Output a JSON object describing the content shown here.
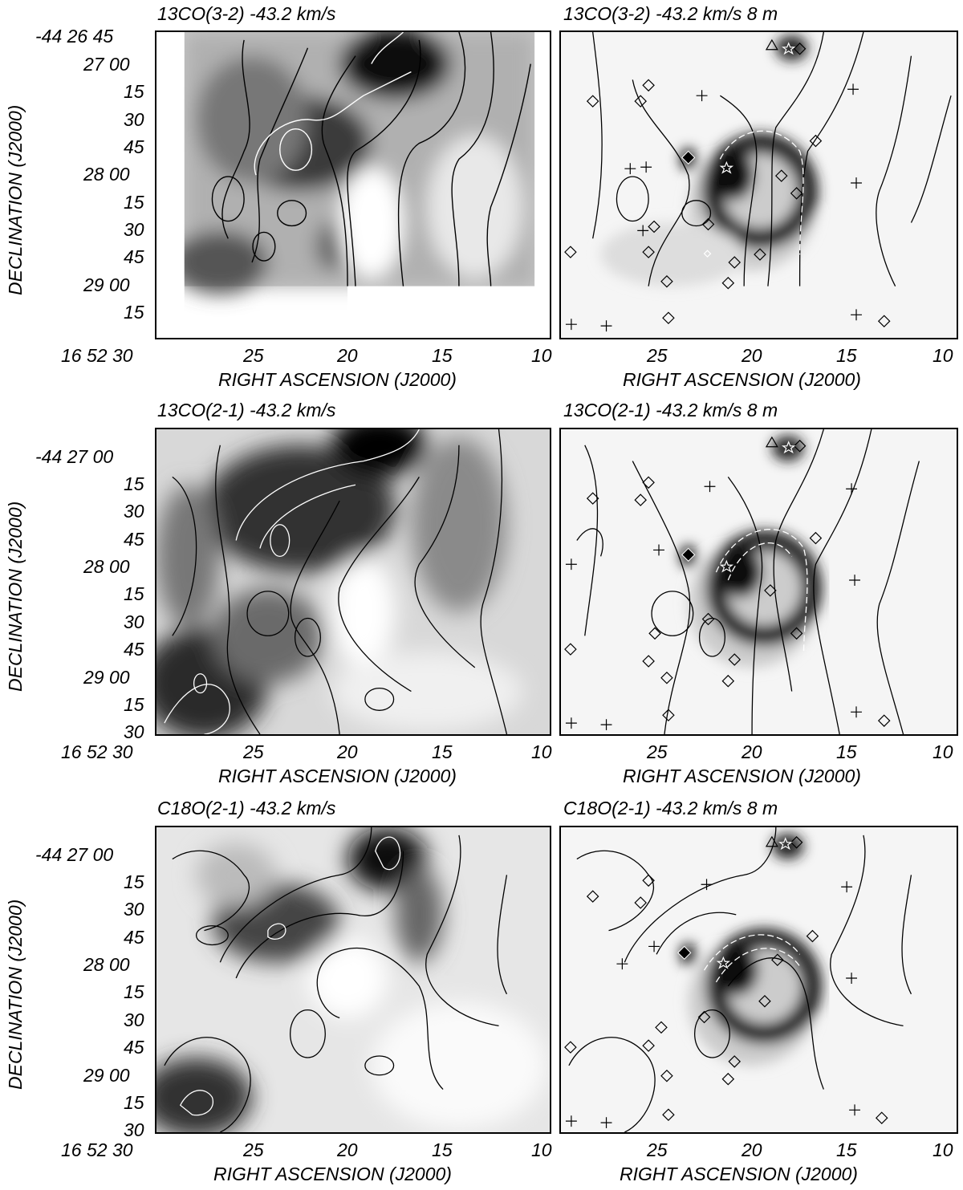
{
  "rows": [
    {
      "left_title": "13CO(3-2)  -43.2 km/s",
      "right_title": "13CO(3-2)  -43.2 km/s  8 m",
      "dec_labels": [
        "-44 26 45",
        "27 00",
        "15",
        "30",
        "45",
        "28 00",
        "15",
        "30",
        "45",
        "29 00",
        "15"
      ],
      "ra_labels": [
        "16 52 30",
        "25",
        "20",
        "15",
        "10"
      ],
      "xlabel": "RIGHT ASCENSION (J2000)",
      "ylabel": "DECLINATION (J2000)"
    },
    {
      "left_title": "13CO(2-1)  -43.2 km/s",
      "right_title": "13CO(2-1)  -43.2 km/s  8 m",
      "dec_labels": [
        "-44 27 00",
        "15",
        "30",
        "45",
        "28 00",
        "15",
        "30",
        "45",
        "29 00",
        "15",
        "30"
      ],
      "ra_labels": [
        "16 52 30",
        "25",
        "20",
        "15",
        "10"
      ],
      "xlabel": "RIGHT ASCENSION (J2000)",
      "ylabel": "DECLINATION (J2000)"
    },
    {
      "left_title": "C18O(2-1)  -43.2 km/s",
      "right_title": "C18O(2-1)  -43.2 km/s  8 m",
      "dec_labels": [
        "-44 27 00",
        "15",
        "30",
        "45",
        "28 00",
        "15",
        "30",
        "45",
        "29 00",
        "15",
        "30"
      ],
      "ra_labels": [
        "16 52 30",
        "25",
        "20",
        "15",
        "10"
      ],
      "xlabel": "RIGHT ASCENSION (J2000)",
      "ylabel": "DECLINATION (J2000)"
    }
  ],
  "right_ra_labels": [
    "25",
    "20",
    "15",
    "10"
  ]
}
